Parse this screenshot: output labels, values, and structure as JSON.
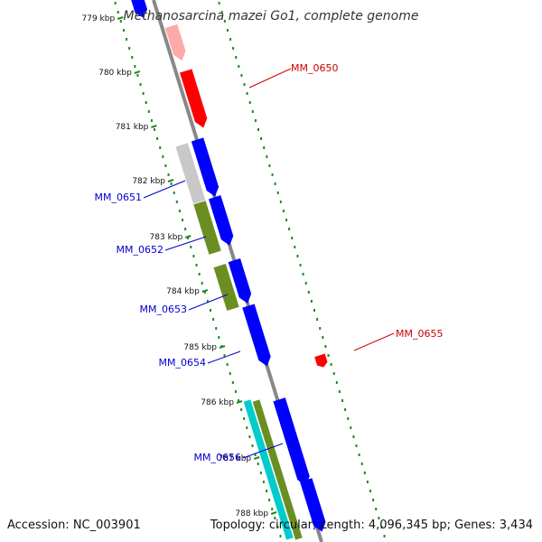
{
  "title": "Methanosarcina mazei Go1, complete genome",
  "footer": {
    "accession": "Accession: NC_003901",
    "summary": "Topology: circular; Length: 4,096,345 bp; Genes: 3,434"
  },
  "colors": {
    "red": "#ff0000",
    "red_label": "#cc0000",
    "blue": "#0000ff",
    "blue_label": "#0000cc",
    "olive": "#6b8e23",
    "gray": "#c8c8c8",
    "cyan": "#00cccc",
    "pink": "#ffaaaa",
    "backbone": "#888888",
    "tick": "#1e8c1e"
  },
  "kbp_labels": [
    "779 kbp",
    "780 kbp",
    "781 kbp",
    "782 kbp",
    "783 kbp",
    "784 kbp",
    "785 kbp",
    "786 kbp",
    "787 kbp",
    "788 kbp"
  ],
  "gene_labels": [
    {
      "id": "MM_0650",
      "side": "right",
      "color": "red"
    },
    {
      "id": "MM_0651",
      "side": "left",
      "color": "blue"
    },
    {
      "id": "MM_0652",
      "side": "left",
      "color": "blue"
    },
    {
      "id": "MM_0653",
      "side": "left",
      "color": "blue"
    },
    {
      "id": "MM_0654",
      "side": "left",
      "color": "blue"
    },
    {
      "id": "MM_0655",
      "side": "right",
      "color": "red"
    },
    {
      "id": "MM_0656",
      "side": "left",
      "color": "blue"
    }
  ]
}
